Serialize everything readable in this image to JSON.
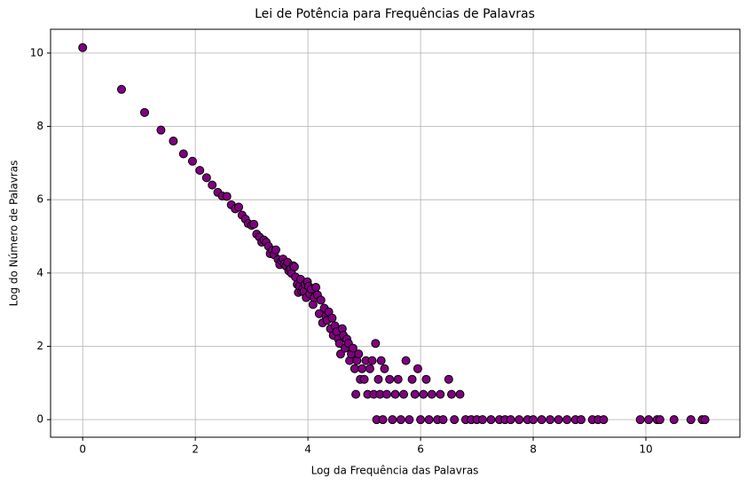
{
  "chart_data": {
    "type": "scatter",
    "title": "Lei de Potência para Frequências de Palavras",
    "x_label": "Log da Frequência das Palavras",
    "y_label": "Log do Número de Palavras",
    "xlim": [
      -0.57,
      11.67
    ],
    "ylim": [
      -0.48,
      10.65
    ],
    "xticks": [
      0,
      2,
      4,
      6,
      8,
      10
    ],
    "yticks": [
      0,
      2,
      4,
      6,
      8,
      10
    ],
    "grid": true,
    "color": "#800080",
    "edgecolor": "#000000",
    "x": [
      0,
      0.69,
      1.1,
      1.39,
      1.61,
      1.79,
      1.95,
      2.08,
      2.2,
      2.3,
      2.4,
      2.48,
      2.56,
      2.64,
      2.71,
      2.77,
      2.83,
      2.89,
      2.94,
      3.0,
      3.04,
      3.09,
      3.14,
      3.18,
      3.22,
      3.26,
      3.3,
      3.33,
      3.37,
      3.4,
      3.43,
      3.47,
      3.5,
      3.53,
      3.56,
      3.58,
      3.61,
      3.64,
      3.66,
      3.69,
      3.71,
      3.74,
      3.76,
      3.78,
      3.81,
      3.83,
      3.85,
      3.87,
      3.89,
      3.91,
      3.93,
      3.95,
      3.97,
      3.99,
      4.01,
      4.03,
      4.06,
      4.09,
      4.11,
      4.14,
      4.17,
      4.2,
      4.23,
      4.26,
      4.29,
      4.32,
      4.34,
      4.37,
      4.4,
      4.43,
      4.45,
      4.48,
      4.51,
      4.54,
      4.56,
      4.58,
      4.61,
      4.63,
      4.66,
      4.69,
      4.72,
      4.74,
      4.77,
      4.8,
      4.83,
      4.85,
      4.87,
      4.9,
      4.93,
      4.96,
      5.0,
      5.03,
      5.06,
      5.1,
      5.14,
      5.17,
      5.2,
      5.22,
      5.25,
      5.28,
      5.3,
      5.33,
      5.36,
      5.4,
      5.45,
      5.5,
      5.55,
      5.6,
      5.65,
      5.7,
      5.74,
      5.8,
      5.85,
      5.9,
      5.95,
      6.0,
      6.05,
      6.1,
      6.15,
      6.2,
      6.3,
      6.35,
      6.4,
      6.5,
      6.55,
      6.6,
      6.7,
      6.8,
      6.9,
      7.0,
      7.1,
      7.25,
      7.4,
      7.5,
      7.6,
      7.75,
      7.9,
      8.0,
      8.15,
      8.3,
      8.45,
      8.6,
      8.75,
      8.85,
      9.05,
      9.15,
      9.25,
      9.9,
      10.05,
      10.2,
      10.25,
      10.5,
      10.8,
      11.0,
      11.05
    ],
    "values": [
      10.15,
      9.01,
      8.38,
      7.9,
      7.6,
      7.25,
      7.05,
      6.8,
      6.6,
      6.4,
      6.2,
      6.1,
      6.09,
      5.86,
      5.75,
      5.8,
      5.58,
      5.47,
      5.35,
      5.3,
      5.33,
      5.06,
      4.98,
      4.84,
      4.9,
      4.84,
      4.73,
      4.53,
      4.62,
      4.5,
      4.63,
      4.37,
      4.23,
      4.33,
      4.38,
      4.25,
      4.19,
      4.29,
      4.06,
      4.11,
      3.99,
      4.2,
      4.17,
      3.89,
      3.69,
      3.47,
      3.64,
      3.83,
      3.5,
      3.58,
      3.5,
      3.69,
      3.33,
      3.76,
      3.64,
      3.43,
      3.56,
      3.14,
      3.33,
      3.61,
      3.4,
      2.89,
      3.26,
      2.64,
      3.04,
      2.83,
      2.71,
      2.94,
      2.48,
      2.77,
      2.3,
      2.56,
      2.4,
      2.2,
      2.08,
      1.79,
      2.48,
      2.3,
      1.95,
      2.2,
      2.08,
      1.61,
      1.79,
      1.95,
      1.39,
      0.69,
      1.61,
      1.79,
      1.1,
      1.39,
      1.1,
      1.61,
      0.69,
      1.39,
      1.61,
      0.69,
      2.08,
      0,
      1.1,
      0.69,
      1.61,
      0,
      1.39,
      0.69,
      1.1,
      0,
      0.69,
      1.1,
      0,
      0.69,
      1.61,
      0,
      1.1,
      0.69,
      1.39,
      0,
      0.69,
      1.1,
      0,
      0.69,
      0,
      0.69,
      0,
      1.1,
      0.69,
      0,
      0.69,
      0,
      0,
      0,
      0,
      0,
      0,
      0,
      0,
      0,
      0,
      0,
      0,
      0,
      0,
      0,
      0,
      0,
      0,
      0,
      0,
      0,
      0,
      0,
      0,
      0,
      0,
      0,
      0
    ]
  }
}
